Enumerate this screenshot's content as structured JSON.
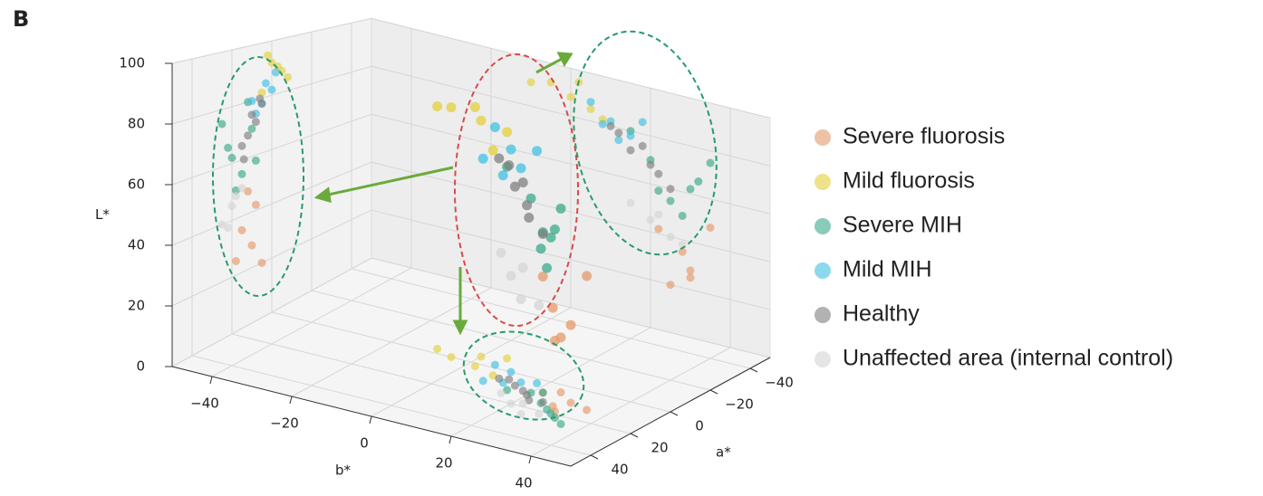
{
  "chart_data": {
    "type": "scatter3d",
    "panel_label": "B",
    "xlabel": "a*",
    "ylabel": "b*",
    "zlabel": "L*",
    "xlim": [
      -50,
      50
    ],
    "ylim": [
      -50,
      50
    ],
    "zlim": [
      0,
      100
    ],
    "xticks": [
      {
        "value": -40,
        "label": "−40"
      },
      {
        "value": -20,
        "label": "−20"
      },
      0,
      20,
      40
    ],
    "yticks": [
      {
        "value": -40,
        "label": "−40"
      },
      {
        "value": -20,
        "label": "−20"
      },
      0,
      20,
      40
    ],
    "zticks": [
      0,
      20,
      40,
      60,
      80,
      100
    ],
    "grid": true,
    "legend": "right",
    "series": [
      {
        "name": "Severe fluorosis",
        "color": "#e39a6a",
        "x": [
          5,
          10,
          15,
          8,
          12,
          18
        ],
        "y": [
          25,
          30,
          28,
          22,
          35,
          30
        ],
        "z": [
          20,
          28,
          35,
          42,
          48,
          25
        ]
      },
      {
        "name": "Mild fluorosis",
        "color": "#e3cf3c",
        "x": [
          -5,
          0,
          -8,
          2,
          -3,
          5
        ],
        "y": [
          0,
          -5,
          5,
          2,
          -10,
          8
        ],
        "z": [
          88,
          92,
          85,
          95,
          90,
          82
        ]
      },
      {
        "name": "Severe MIH",
        "color": "#3aa88a",
        "x": [
          15,
          20,
          10,
          25,
          18,
          12,
          22,
          8
        ],
        "y": [
          25,
          30,
          20,
          35,
          28,
          15,
          32,
          22
        ],
        "z": [
          55,
          62,
          70,
          75,
          50,
          80,
          66,
          58
        ]
      },
      {
        "name": "Mild MIH",
        "color": "#3fc0e2",
        "x": [
          0,
          5,
          -2,
          8,
          3,
          10
        ],
        "y": [
          10,
          15,
          5,
          12,
          18,
          8
        ],
        "z": [
          82,
          78,
          88,
          75,
          85,
          80
        ]
      },
      {
        "name": "Healthy",
        "color": "#7f7f7f",
        "x": [
          8,
          12,
          5,
          15,
          10,
          6,
          14
        ],
        "y": [
          15,
          20,
          12,
          22,
          18,
          10,
          25
        ],
        "z": [
          72,
          68,
          78,
          65,
          75,
          80,
          60
        ]
      },
      {
        "name": "Unaffected area (internal control)",
        "color": "#d4d4d4",
        "x": [
          20,
          25,
          15,
          22,
          18
        ],
        "y": [
          20,
          25,
          15,
          28,
          22
        ],
        "z": [
          45,
          40,
          50,
          38,
          48
        ]
      }
    ]
  }
}
